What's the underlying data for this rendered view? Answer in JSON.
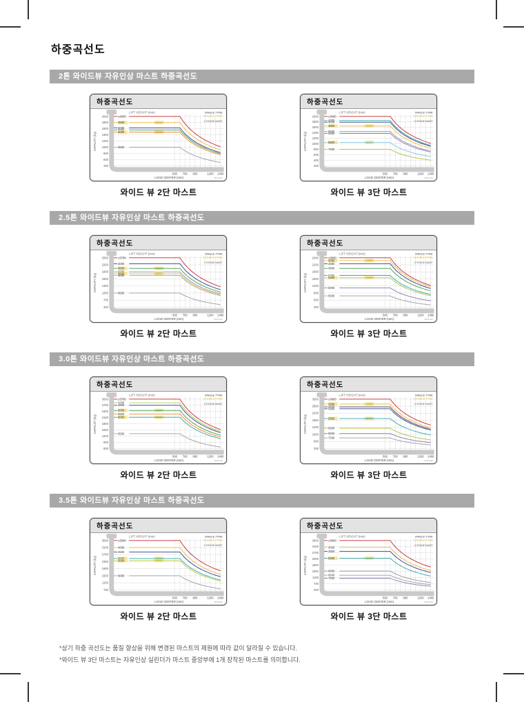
{
  "page": {
    "title": "하중곡선도",
    "footnotes": [
      "*상기 하중 곡선도는 품질 향상을 위해 변경된 마스트의 제원에 따라 값이 달라질 수 있습니다.",
      "*와이드 뷰 3단 마스트는 자유인상 실린더가 마스트 중앙부에 1개 장착된 마스트를 의미합니다."
    ]
  },
  "colors": {
    "section_bar": "#a8a8a8",
    "panel_header": "#e3e3e3",
    "grid": "#d4d4d4",
    "axis_band": "#c9c9c9",
    "double_highlight": "#f5e7a0"
  },
  "sections": [
    {
      "header": "2톤 와이드뷰 자유인상 마스트 하중곡선도",
      "charts": [
        0,
        1
      ]
    },
    {
      "header": "2.5톤 와이드뷰 자유인상 마스트 하중곡선도",
      "charts": [
        2,
        3
      ]
    },
    {
      "header": "3.0톤 와이드뷰 자유인상 마스트 하중곡선도",
      "charts": [
        4,
        5
      ]
    },
    {
      "header": "3.5톤 와이드뷰 자유인상 마스트 하중곡선도",
      "charts": [
        6,
        7
      ]
    }
  ],
  "chart_data": [
    {
      "type": "line",
      "panel_title": "하중곡선도",
      "caption": "와이드 뷰 2단 마스트",
      "legend_title": "LIFT HEIGHT (mm)",
      "tyre_single": "SINGLE TYRE",
      "tyre_double": "DOUBLE TYRE",
      "stage": "2 STAGE MAST",
      "code": "BT20-2M",
      "xlabel": "LOAD CENTER (mm)",
      "ylabel": "CAPACITY (kg)",
      "x_ticks": [
        500,
        700,
        900,
        1200,
        1400
      ],
      "x_range": [
        500,
        1400
      ],
      "y_ticks": [
        2000,
        1800,
        1600,
        1400,
        1200,
        1000,
        800,
        600,
        400
      ],
      "flat_until_mm": 600,
      "grid": true,
      "series": [
        {
          "name": "≤4000",
          "lift_height_mm": 4000,
          "color": "#c7232b",
          "capacity_at_500": 2000,
          "double_tyre_highlight": false
        },
        {
          "name": "4500",
          "lift_height_mm": 4500,
          "color": "#e7b93c",
          "capacity_at_500": 1800,
          "double_tyre_highlight": true
        },
        {
          "name": "5000",
          "lift_height_mm": 5000,
          "color": "#2b3a8f",
          "capacity_at_500": 1630,
          "double_tyre_highlight": false
        },
        {
          "name": "5500",
          "lift_height_mm": 5500,
          "color": "#3f9c42",
          "capacity_at_500": 1560,
          "double_tyre_highlight": false
        },
        {
          "name": "6000",
          "lift_height_mm": 6000,
          "color": "#ef8325",
          "capacity_at_500": 1490,
          "double_tyre_highlight": true
        },
        {
          "name": "6500",
          "lift_height_mm": 6500,
          "color": "#9a9a9a",
          "capacity_at_500": 1000,
          "double_tyre_highlight": false
        }
      ]
    },
    {
      "type": "line",
      "panel_title": "하중곡선도",
      "caption": "와이드 뷰 3단 마스트",
      "legend_title": "LIFT HEIGHT (mm)",
      "tyre_single": "SINGLE TYRE",
      "tyre_double": "DOUBLE TYRE",
      "stage": "3 STAGE MAST",
      "code": "BT20-3M",
      "xlabel": "LOAD CENTER (mm)",
      "ylabel": "CAPACITY (kg)",
      "x_ticks": [
        500,
        700,
        900,
        1200,
        1400
      ],
      "x_range": [
        500,
        1400
      ],
      "y_ticks": [
        2000,
        1800,
        1600,
        1400,
        1200,
        1000,
        800,
        600,
        400,
        200
      ],
      "flat_until_mm": 600,
      "grid": true,
      "series": [
        {
          "name": "≤3600",
          "lift_height_mm": 3600,
          "color": "#c7232b",
          "capacity_at_500": 2000,
          "double_tyre_highlight": false
        },
        {
          "name": "4000",
          "lift_height_mm": 4000,
          "color": "#2ba6a0",
          "capacity_at_500": 1850,
          "double_tyre_highlight": false
        },
        {
          "name": "4500",
          "lift_height_mm": 4500,
          "color": "#2b3a8f",
          "capacity_at_500": 1790,
          "double_tyre_highlight": false
        },
        {
          "name": "4800",
          "lift_height_mm": 4800,
          "color": "#e7b93c",
          "capacity_at_500": 1650,
          "double_tyre_highlight": true
        },
        {
          "name": "5500",
          "lift_height_mm": 5500,
          "color": "#8a90a5",
          "capacity_at_500": 1450,
          "double_tyre_highlight": false
        },
        {
          "name": "6000",
          "lift_height_mm": 6000,
          "color": "#8577b0",
          "capacity_at_500": 1380,
          "double_tyre_highlight": false
        },
        {
          "name": "6500",
          "lift_height_mm": 6500,
          "color": "#7fc3dd",
          "capacity_at_500": 1050,
          "double_tyre_highlight": true
        },
        {
          "name": "7000",
          "lift_height_mm": 7000,
          "color": "#b3bd3a",
          "capacity_at_500": 800,
          "double_tyre_highlight": false
        }
      ]
    },
    {
      "type": "line",
      "panel_title": "하중곡선도",
      "caption": "와이드 뷰 2단 마스트",
      "legend_title": "LIFT HEIGHT (mm)",
      "tyre_single": "SINGLE TYRE",
      "tyre_double": "DOUBLE TYRE",
      "stage": "2 STAGE MAST",
      "code": "BT25-2M",
      "xlabel": "LOAD CENTER (mm)",
      "ylabel": "CAPACITY (kg)",
      "x_ticks": [
        500,
        700,
        900,
        1200,
        1400
      ],
      "x_range": [
        500,
        1400
      ],
      "y_ticks": [
        2500,
        2200,
        1900,
        1600,
        1300,
        1000,
        700,
        400
      ],
      "flat_until_mm": 600,
      "grid": true,
      "series": [
        {
          "name": "≤3700",
          "lift_height_mm": 3700,
          "color": "#c7232b",
          "capacity_at_500": 2500,
          "double_tyre_highlight": false
        },
        {
          "name": "4000",
          "lift_height_mm": 4000,
          "color": "#2b3a8f",
          "capacity_at_500": 2250,
          "double_tyre_highlight": false
        },
        {
          "name": "4500",
          "lift_height_mm": 4500,
          "color": "#3f9c42",
          "capacity_at_500": 2050,
          "double_tyre_highlight": true
        },
        {
          "name": "5000",
          "lift_height_mm": 5000,
          "color": "#8a90a5",
          "capacity_at_500": 1900,
          "double_tyre_highlight": false
        },
        {
          "name": "5500",
          "lift_height_mm": 5500,
          "color": "#e7b93c",
          "capacity_at_500": 1820,
          "double_tyre_highlight": true
        },
        {
          "name": "6000",
          "lift_height_mm": 6000,
          "color": "#a8a8a8",
          "capacity_at_500": 1750,
          "double_tyre_highlight": false
        },
        {
          "name": "6500",
          "lift_height_mm": 6500,
          "color": "#9a9a9a",
          "capacity_at_500": 1000,
          "double_tyre_highlight": false
        }
      ]
    },
    {
      "type": "line",
      "panel_title": "하중곡선도",
      "caption": "와이드 뷰 3단 마스트",
      "legend_title": "LIFT HEIGHT (mm)",
      "tyre_single": "SINGLE TYRE",
      "tyre_double": "DOUBLE TYRE",
      "stage": "3 STAGE MAST",
      "code": "BT25-3M",
      "xlabel": "LOAD CENTER (mm)",
      "ylabel": "CAPACITY (kg)",
      "x_ticks": [
        500,
        700,
        900,
        1200,
        1400
      ],
      "x_range": [
        500,
        1400
      ],
      "y_ticks": [
        2400,
        2100,
        1800,
        1500,
        1200,
        900,
        600,
        300
      ],
      "flat_until_mm": 600,
      "grid": true,
      "series": [
        {
          "name": "≤3600",
          "lift_height_mm": 3600,
          "color": "#c7232b",
          "capacity_at_500": 2400,
          "double_tyre_highlight": false
        },
        {
          "name": "4350",
          "lift_height_mm": 4350,
          "color": "#e7b93c",
          "capacity_at_500": 2280,
          "double_tyre_highlight": true
        },
        {
          "name": "4500",
          "lift_height_mm": 4500,
          "color": "#2b3a8f",
          "capacity_at_500": 2150,
          "double_tyre_highlight": false
        },
        {
          "name": "4800",
          "lift_height_mm": 4800,
          "color": "#3f9c42",
          "capacity_at_500": 1950,
          "double_tyre_highlight": false
        },
        {
          "name": "5000",
          "lift_height_mm": 5000,
          "color": "#2ba6a0",
          "capacity_at_500": 1650,
          "double_tyre_highlight": false
        },
        {
          "name": "5400",
          "lift_height_mm": 5400,
          "color": "#b3bd3a",
          "capacity_at_500": 1550,
          "double_tyre_highlight": true
        },
        {
          "name": "6000",
          "lift_height_mm": 6000,
          "color": "#8577b0",
          "capacity_at_500": 1120,
          "double_tyre_highlight": false
        },
        {
          "name": "6500",
          "lift_height_mm": 6500,
          "color": "#9a9a9a",
          "capacity_at_500": 780,
          "double_tyre_highlight": false
        }
      ]
    },
    {
      "type": "line",
      "panel_title": "하중곡선도",
      "caption": "와이드 뷰 2단 마스트",
      "legend_title": "LIFT HEIGHT (mm)",
      "tyre_single": "SINGLE TYRE",
      "tyre_double": "DOUBLE TYRE",
      "stage": "2 STAGE MAST",
      "code": "BT30-2M",
      "xlabel": "LOAD CENTER (mm)",
      "ylabel": "CAPACITY (kg)",
      "x_ticks": [
        500,
        700,
        900,
        1200,
        1400
      ],
      "x_range": [
        500,
        1400
      ],
      "y_ticks": [
        3000,
        2700,
        2400,
        2100,
        1800,
        1500,
        1200,
        900,
        600
      ],
      "flat_until_mm": 600,
      "grid": true,
      "series": [
        {
          "name": "≤3700",
          "lift_height_mm": 3700,
          "color": "#c7232b",
          "capacity_at_500": 3000,
          "double_tyre_highlight": false
        },
        {
          "name": "4250",
          "lift_height_mm": 4250,
          "color": "#b3c93a",
          "capacity_at_500": 2820,
          "double_tyre_highlight": false
        },
        {
          "name": "4500",
          "lift_height_mm": 4500,
          "color": "#2b3a8f",
          "capacity_at_500": 2700,
          "double_tyre_highlight": false
        },
        {
          "name": "5000",
          "lift_height_mm": 5000,
          "color": "#3f9c42",
          "capacity_at_500": 2450,
          "double_tyre_highlight": true
        },
        {
          "name": "5500",
          "lift_height_mm": 5500,
          "color": "#ef8325",
          "capacity_at_500": 2280,
          "double_tyre_highlight": false
        },
        {
          "name": "6000",
          "lift_height_mm": 6000,
          "color": "#2ba6a0",
          "capacity_at_500": 2120,
          "double_tyre_highlight": true
        },
        {
          "name": "6500",
          "lift_height_mm": 6500,
          "color": "#9a9a9a",
          "capacity_at_500": 1320,
          "double_tyre_highlight": false
        }
      ]
    },
    {
      "type": "line",
      "panel_title": "하중곡선도",
      "caption": "와이드 뷰 3단 마스트",
      "legend_title": "LIFT HEIGHT (mm)",
      "tyre_single": "SINGLE TYRE",
      "tyre_double": "DOUBLE TYRE",
      "stage": "3 STAGE MAST",
      "code": "BT30-3M",
      "xlabel": "LOAD CENTER (mm)",
      "ylabel": "CAPACITY (kg)",
      "x_ticks": [
        500,
        700,
        900,
        1200,
        1400
      ],
      "x_range": [
        500,
        1400
      ],
      "y_ticks": [
        3000,
        2600,
        2200,
        1800,
        1400,
        1000,
        600,
        200
      ],
      "flat_until_mm": 600,
      "grid": true,
      "series": [
        {
          "name": "≤3600",
          "lift_height_mm": 3600,
          "color": "#c7232b",
          "capacity_at_500": 3000,
          "double_tyre_highlight": false
        },
        {
          "name": "4350",
          "lift_height_mm": 4350,
          "color": "#e7b93c",
          "capacity_at_500": 2720,
          "double_tyre_highlight": true
        },
        {
          "name": "4500",
          "lift_height_mm": 4500,
          "color": "#4a4a4a",
          "capacity_at_500": 2560,
          "double_tyre_highlight": false
        },
        {
          "name": "5000",
          "lift_height_mm": 5000,
          "color": "#2b3a8f",
          "capacity_at_500": 2450,
          "double_tyre_highlight": false
        },
        {
          "name": "5500",
          "lift_height_mm": 5500,
          "color": "#2ba6a0",
          "capacity_at_500": 1900,
          "double_tyre_highlight": true
        },
        {
          "name": "6000",
          "lift_height_mm": 6000,
          "color": "#b3bd3a",
          "capacity_at_500": 1350,
          "double_tyre_highlight": false
        },
        {
          "name": "6500",
          "lift_height_mm": 6500,
          "color": "#8577b0",
          "capacity_at_500": 1050,
          "double_tyre_highlight": false
        },
        {
          "name": "7000",
          "lift_height_mm": 7000,
          "color": "#9a9a9a",
          "capacity_at_500": 800,
          "double_tyre_highlight": false
        }
      ]
    },
    {
      "type": "line",
      "panel_title": "하중곡선도",
      "caption": "와이드 뷰 2단 마스트",
      "legend_title": "LIFT HEIGHT (mm)",
      "tyre_single": "SINGLE TYRE",
      "tyre_double": "DOUBLE TYRE",
      "stage": "2 STAGE MAST",
      "code": "BT35-2M",
      "xlabel": "LOAD CENTER (mm)",
      "ylabel": "CAPACITY (kg)",
      "x_ticks": [
        500,
        700,
        900,
        1200,
        1400
      ],
      "x_range": [
        500,
        1400
      ],
      "y_ticks": [
        3500,
        3100,
        2700,
        2300,
        1900,
        1500,
        1100,
        700
      ],
      "flat_until_mm": 600,
      "grid": true,
      "series": [
        {
          "name": "≤3500",
          "lift_height_mm": 3500,
          "color": "#c7232b",
          "capacity_at_500": 3500,
          "double_tyre_highlight": false
        },
        {
          "name": "4000",
          "lift_height_mm": 4000,
          "color": "#e7b93c",
          "capacity_at_500": 3100,
          "double_tyre_highlight": false
        },
        {
          "name": "4500",
          "lift_height_mm": 4500,
          "color": "#2b3a8f",
          "capacity_at_500": 2850,
          "double_tyre_highlight": false
        },
        {
          "name": "5000",
          "lift_height_mm": 5000,
          "color": "#2ba6a0",
          "capacity_at_500": 2480,
          "double_tyre_highlight": true
        },
        {
          "name": "5500",
          "lift_height_mm": 5500,
          "color": "#b3c93a",
          "capacity_at_500": 2360,
          "double_tyre_highlight": true
        },
        {
          "name": "6000",
          "lift_height_mm": 6000,
          "color": "#9a9a9a",
          "capacity_at_500": 1500,
          "double_tyre_highlight": false
        }
      ]
    },
    {
      "type": "line",
      "panel_title": "하중곡선도",
      "caption": "와이드 뷰 3단 마스트",
      "legend_title": "LIFT HEIGHT (mm)",
      "tyre_single": "SINGLE TYRE",
      "tyre_double": "DOUBLE TYRE",
      "stage": "3 STAGE MAST",
      "code": "BT35-3M",
      "xlabel": "LOAD CENTER (mm)",
      "ylabel": "CAPACITY (kg)",
      "x_ticks": [
        500,
        700,
        900,
        1200,
        1400
      ],
      "x_range": [
        500,
        1400
      ],
      "y_ticks": [
        3500,
        3100,
        2700,
        2300,
        1900,
        1500,
        1100,
        700,
        300
      ],
      "flat_until_mm": 600,
      "grid": true,
      "series": [
        {
          "name": "≤3600",
          "lift_height_mm": 3600,
          "color": "#c7232b",
          "capacity_at_500": 3500,
          "double_tyre_highlight": false
        },
        {
          "name": "4000",
          "lift_height_mm": 4000,
          "color": "#e7b93c",
          "capacity_at_500": 3050,
          "double_tyre_highlight": false
        },
        {
          "name": "4800",
          "lift_height_mm": 4800,
          "color": "#2b3a8f",
          "capacity_at_500": 2800,
          "double_tyre_highlight": false
        },
        {
          "name": "5400",
          "lift_height_mm": 5400,
          "color": "#2ba6a0",
          "capacity_at_500": 2350,
          "double_tyre_highlight": true
        },
        {
          "name": "6000",
          "lift_height_mm": 6000,
          "color": "#8a90a5",
          "capacity_at_500": 1520,
          "double_tyre_highlight": false
        },
        {
          "name": "6500",
          "lift_height_mm": 6500,
          "color": "#9a9a9a",
          "capacity_at_500": 1250,
          "double_tyre_highlight": false
        },
        {
          "name": "7000",
          "lift_height_mm": 7000,
          "color": "#8577b0",
          "capacity_at_500": 1050,
          "double_tyre_highlight": false
        }
      ]
    }
  ]
}
